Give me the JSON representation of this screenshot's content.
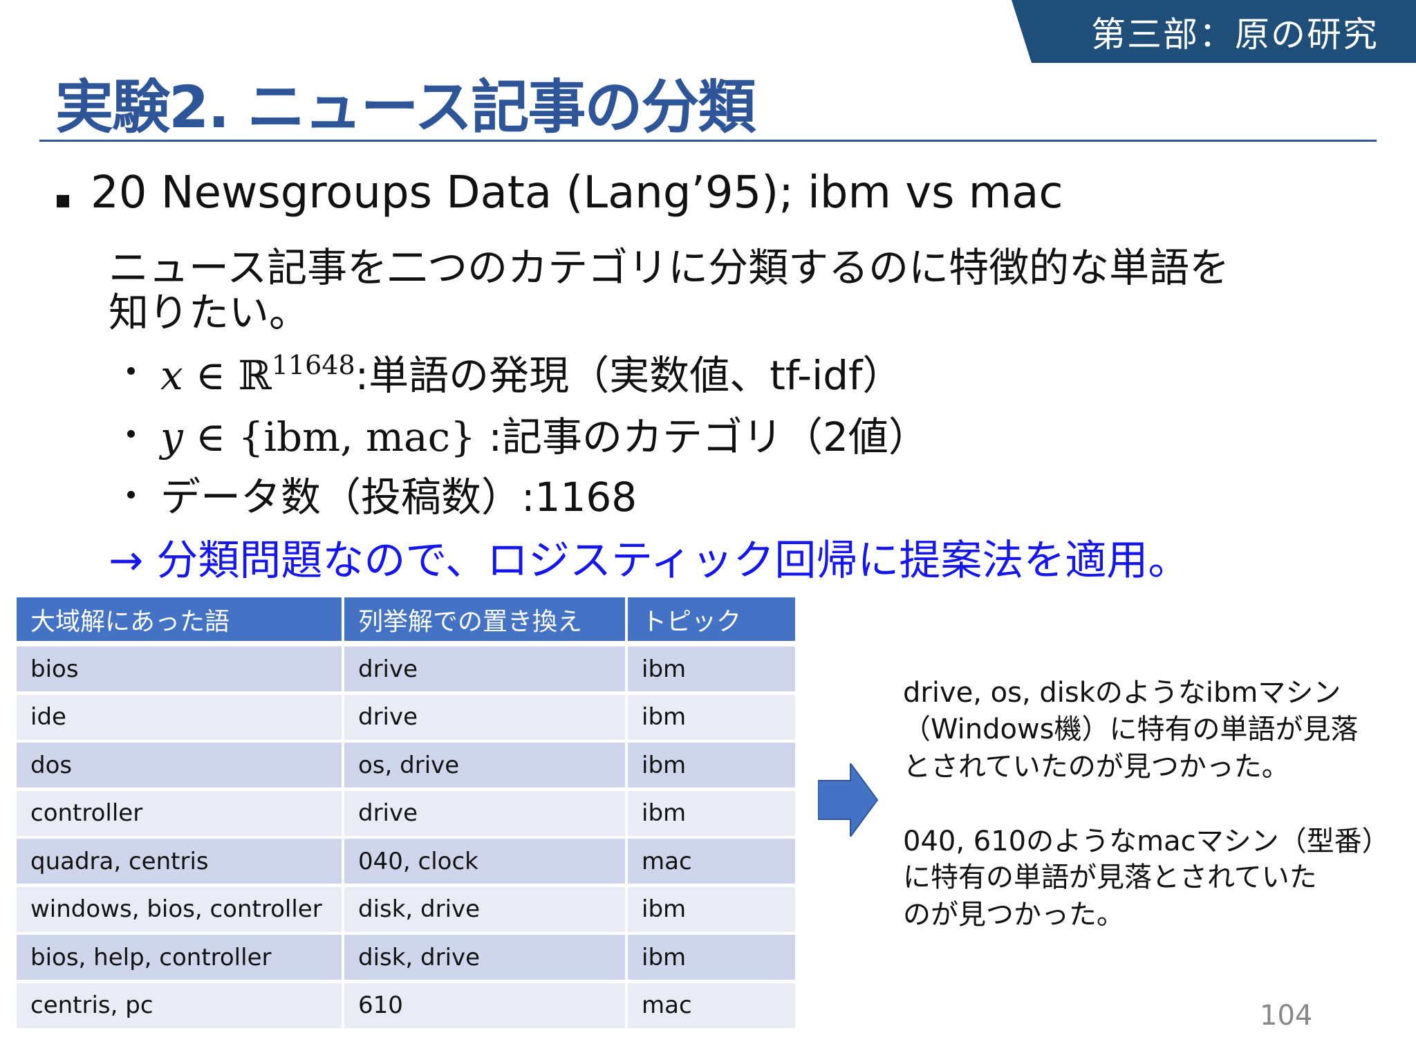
{
  "header": {
    "section": "第三部：原の研究",
    "title": "実験2. ニュース記事の分類",
    "banner_color": "#1f4e79",
    "title_color": "#2e5597"
  },
  "body": {
    "bullet_main": "20 Newsgroups Data (Lang’95); ibm vs mac",
    "description_line1": "ニュース記事を二つのカテゴリに分類するのに特徴的な単語を",
    "description_line2": "知りたい。",
    "sub_bullets": [
      {
        "math_var": "x",
        "math_rel": "∈",
        "math_set": "ℝ",
        "math_sup": "11648",
        "text": ":単語の発現（実数値、tf-idf）"
      },
      {
        "math_var": "y",
        "math_rel": "∈",
        "math_set": "{ibm, mac}",
        "text": ":記事のカテゴリ（2値）"
      },
      {
        "text": "データ数（投稿数）:1168"
      }
    ],
    "conclusion": "→ 分類問題なので、ロジスティック回帰に提案法を適用。",
    "conclusion_color": "#1515ee"
  },
  "table": {
    "headers": [
      "大域解にあった語",
      "列挙解での置き換え",
      "トピック"
    ],
    "rows": [
      [
        "bios",
        "drive",
        "ibm"
      ],
      [
        "ide",
        "drive",
        "ibm"
      ],
      [
        "dos",
        "os, drive",
        "ibm"
      ],
      [
        "controller",
        "drive",
        "ibm"
      ],
      [
        "quadra, centris",
        "040, clock",
        "mac"
      ],
      [
        "windows, bios, controller",
        "disk, drive",
        "ibm"
      ],
      [
        "bios, help, controller",
        "disk, drive",
        "ibm"
      ],
      [
        "centris, pc",
        "610",
        "mac"
      ]
    ],
    "header_color": "#4472c4"
  },
  "notes": {
    "arrow_icon": "right-arrow-icon",
    "para1": [
      "drive, os, diskのようなibmマシン",
      "（Windows機）に特有の単語が見落",
      "とされていたのが見つかった。"
    ],
    "para2": [
      "040, 610のようなmacマシン（型番）",
      "に特有の単語が見落とされていた",
      "のが見つかった。"
    ]
  },
  "page_number": "104"
}
